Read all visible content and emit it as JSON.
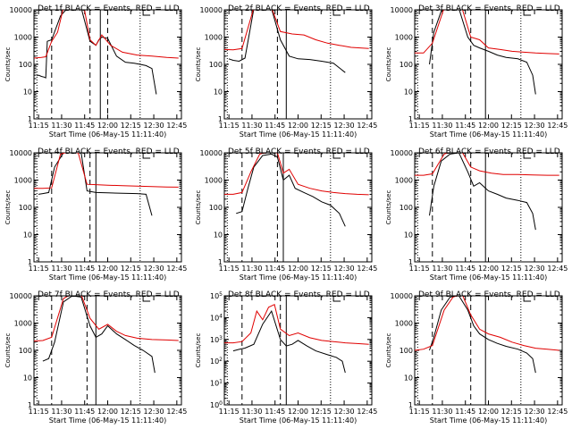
{
  "chart_data": [
    {
      "type": "line",
      "title": "Det 1f BLACK = Events, RED = LLD",
      "xlabel": "Start Time (06-May-15 11:11:40)",
      "ylabel": "Counts/sec",
      "x_ticks": [
        "11:15",
        "11:30",
        "11:45",
        "12:00",
        "12:15",
        "12:30",
        "12:45"
      ],
      "y_ticks": [
        "1",
        "10",
        "100",
        "1000",
        "10000"
      ],
      "yscale": "log",
      "ylim": [
        1,
        10000
      ],
      "series": [
        {
          "name": "Events",
          "color": "#000000",
          "x": [
            0.02,
            0.03,
            0.05,
            0.07,
            0.08,
            0.09,
            0.12,
            0.18,
            0.23,
            0.27,
            0.32,
            0.38,
            0.42,
            0.44,
            0.46,
            0.5,
            0.56,
            0.62,
            0.68,
            0.72,
            0.76,
            0.8,
            0.83
          ],
          "y": [
            38,
            40,
            36,
            34,
            32,
            700,
            800,
            6000,
            12000,
            13000,
            12000,
            700,
            500,
            800,
            1000,
            900,
            200,
            120,
            110,
            100,
            90,
            70,
            8
          ]
        },
        {
          "name": "LLD",
          "color": "#e00000",
          "x": [
            0,
            0.05,
            0.08,
            0.12,
            0.16,
            0.2,
            0.27,
            0.34,
            0.38,
            0.42,
            0.46,
            0.52,
            0.6,
            0.7,
            0.8,
            0.9,
            0.98
          ],
          "y": [
            170,
            180,
            190,
            700,
            1500,
            12000,
            13000,
            12000,
            800,
            500,
            1200,
            500,
            280,
            220,
            200,
            180,
            170
          ]
        }
      ],
      "vlines_dashed": [
        0.12,
        0.38,
        0.5
      ],
      "vlines_dotted": [
        0.02,
        0.72
      ],
      "vlines_solid": [
        0.45
      ]
    },
    {
      "type": "line",
      "title": "Det 2f BLACK = Events, RED = LLD",
      "xlabel": "Start Time (06-May-15 11:11:40)",
      "ylabel": "Counts/sec",
      "x_ticks": [
        "11:15",
        "11:30",
        "11:45",
        "12:00",
        "12:15",
        "12:30",
        "12:45"
      ],
      "y_ticks": [
        "1",
        "10",
        "100",
        "1000",
        "10000"
      ],
      "yscale": "log",
      "ylim": [
        1,
        10000
      ],
      "series": [
        {
          "name": "Events",
          "color": "#000000",
          "x": [
            0.03,
            0.06,
            0.1,
            0.14,
            0.2,
            0.26,
            0.32,
            0.38,
            0.44,
            0.5,
            0.58,
            0.66,
            0.74,
            0.82
          ],
          "y": [
            160,
            140,
            130,
            170,
            11000,
            12000,
            11000,
            800,
            200,
            160,
            150,
            130,
            110,
            50
          ]
        },
        {
          "name": "LLD",
          "color": "#e00000",
          "x": [
            0,
            0.06,
            0.12,
            0.2,
            0.26,
            0.32,
            0.38,
            0.46,
            0.54,
            0.62,
            0.7,
            0.78,
            0.86,
            0.98
          ],
          "y": [
            350,
            340,
            380,
            12000,
            13000,
            12000,
            1600,
            1300,
            1200,
            800,
            600,
            500,
            420,
            380
          ]
        }
      ],
      "vlines_dashed": [
        0.12,
        0.36
      ],
      "vlines_dotted": [
        0.02,
        0.72
      ],
      "vlines_solid": [
        0.42
      ]
    },
    {
      "type": "line",
      "title": "Det 3f BLACK = Events, RED = LLD",
      "xlabel": "Start Time (06-May-15 11:11:40)",
      "ylabel": "Counts/sec",
      "x_ticks": [
        "11:15",
        "11:30",
        "11:45",
        "12:00",
        "12:15",
        "12:30",
        "12:45"
      ],
      "y_ticks": [
        "1",
        "10",
        "100",
        "1000",
        "10000"
      ],
      "yscale": "log",
      "ylim": [
        1,
        10000
      ],
      "series": [
        {
          "name": "Events",
          "color": "#000000",
          "x": [
            0.1,
            0.13,
            0.18,
            0.24,
            0.3,
            0.36,
            0.4,
            0.44,
            0.5,
            0.56,
            0.62,
            0.7,
            0.76,
            0.8,
            0.82
          ],
          "y": [
            100,
            1500,
            9000,
            12000,
            11000,
            1000,
            500,
            400,
            300,
            220,
            180,
            160,
            120,
            40,
            8
          ]
        },
        {
          "name": "LLD",
          "color": "#e00000",
          "x": [
            0,
            0.06,
            0.12,
            0.2,
            0.26,
            0.32,
            0.38,
            0.44,
            0.5,
            0.58,
            0.66,
            0.74,
            0.82,
            0.9,
            0.98
          ],
          "y": [
            260,
            260,
            600,
            12000,
            13000,
            12000,
            1000,
            800,
            400,
            350,
            300,
            280,
            260,
            250,
            240
          ]
        }
      ],
      "vlines_dashed": [
        0.12,
        0.38
      ],
      "vlines_dotted": [
        0.02,
        0.72
      ],
      "vlines_solid": [
        0.48
      ]
    },
    {
      "type": "line",
      "title": "Det 4f BLACK = Events, RED = LLD",
      "xlabel": "Start Time (06-May-15 11:11:40)",
      "ylabel": "Counts/sec",
      "x_ticks": [
        "11:15",
        "11:30",
        "11:45",
        "12:00",
        "12:15",
        "12:30",
        "12:45"
      ],
      "y_ticks": [
        "1",
        "10",
        "100",
        "1000",
        "10000"
      ],
      "yscale": "log",
      "ylim": [
        1,
        10000
      ],
      "series": [
        {
          "name": "Events",
          "color": "#000000",
          "x": [
            0.03,
            0.06,
            0.1,
            0.14,
            0.2,
            0.26,
            0.32,
            0.36,
            0.42,
            0.5,
            0.6,
            0.7,
            0.76,
            0.8
          ],
          "y": [
            300,
            320,
            350,
            3000,
            10000,
            11000,
            10000,
            400,
            350,
            340,
            330,
            320,
            300,
            50
          ]
        },
        {
          "name": "LLD",
          "color": "#e00000",
          "x": [
            0,
            0.06,
            0.12,
            0.18,
            0.24,
            0.3,
            0.36,
            0.42,
            0.5,
            0.6,
            0.7,
            0.8,
            0.9,
            0.98
          ],
          "y": [
            500,
            500,
            520,
            9000,
            11000,
            10000,
            700,
            680,
            650,
            620,
            600,
            580,
            560,
            550
          ]
        }
      ],
      "vlines_dashed": [
        0.12,
        0.38
      ],
      "vlines_dotted": [
        0.02,
        0.72
      ],
      "vlines_solid": [
        0.42
      ]
    },
    {
      "type": "line",
      "title": "Det 5f BLACK = Events, RED = LLD",
      "xlabel": "Start Time (06-May-15 11:11:40)",
      "ylabel": "Counts/sec",
      "x_ticks": [
        "11:15",
        "11:30",
        "11:45",
        "12:00",
        "12:15",
        "12:30",
        "12:45"
      ],
      "y_ticks": [
        "1",
        "10",
        "100",
        "1000",
        "10000"
      ],
      "yscale": "log",
      "ylim": [
        1,
        10000
      ],
      "series": [
        {
          "name": "Events",
          "color": "#000000",
          "x": [
            0.08,
            0.12,
            0.16,
            0.2,
            0.26,
            0.32,
            0.36,
            0.4,
            0.44,
            0.48,
            0.54,
            0.6,
            0.66,
            0.72,
            0.78,
            0.82
          ],
          "y": [
            60,
            70,
            500,
            3000,
            8000,
            9000,
            7000,
            1000,
            1500,
            500,
            350,
            250,
            160,
            120,
            60,
            20
          ]
        },
        {
          "name": "LLD",
          "color": "#e00000",
          "x": [
            0,
            0.06,
            0.12,
            0.18,
            0.24,
            0.3,
            0.36,
            0.4,
            0.44,
            0.5,
            0.58,
            0.66,
            0.74,
            0.82,
            0.9,
            0.98
          ],
          "y": [
            300,
            300,
            350,
            2000,
            9000,
            11000,
            10000,
            1800,
            2500,
            700,
            500,
            400,
            350,
            320,
            300,
            290
          ]
        }
      ],
      "vlines_dashed": [
        0.12,
        0.36
      ],
      "vlines_dotted": [
        0.02,
        0.72
      ],
      "vlines_solid": [
        0.4
      ]
    },
    {
      "type": "line",
      "title": "Det 6f BLACK = Events, RED = LLD",
      "xlabel": "Start Time (06-May-15 11:11:40)",
      "ylabel": "Counts/sec",
      "x_ticks": [
        "11:15",
        "11:30",
        "11:45",
        "12:00",
        "12:15",
        "12:30",
        "12:45"
      ],
      "y_ticks": [
        "1",
        "10",
        "100",
        "1000",
        "10000"
      ],
      "yscale": "log",
      "ylim": [
        1,
        10000
      ],
      "series": [
        {
          "name": "Events",
          "color": "#000000",
          "x": [
            0.1,
            0.13,
            0.18,
            0.24,
            0.3,
            0.36,
            0.4,
            0.44,
            0.5,
            0.56,
            0.62,
            0.7,
            0.76,
            0.8,
            0.82
          ],
          "y": [
            50,
            600,
            5000,
            9000,
            10000,
            2000,
            600,
            800,
            400,
            300,
            220,
            180,
            150,
            60,
            15
          ]
        },
        {
          "name": "LLD",
          "color": "#e00000",
          "x": [
            0,
            0.06,
            0.12,
            0.2,
            0.26,
            0.32,
            0.38,
            0.44,
            0.52,
            0.6,
            0.7,
            0.8,
            0.9,
            0.98
          ],
          "y": [
            1500,
            1500,
            1700,
            9000,
            12000,
            11000,
            3000,
            2200,
            1800,
            1600,
            1600,
            1550,
            1500,
            1500
          ]
        }
      ],
      "vlines_dashed": [
        0.12,
        0.38
      ],
      "vlines_dotted": [
        0.02,
        0.72
      ],
      "vlines_solid": [
        0.48
      ]
    },
    {
      "type": "line",
      "title": "Det 7f BLACK = Events, RED = LLD",
      "xlabel": "Start Time (06-May-15 11:11:40)",
      "ylabel": "Counts/sec",
      "x_ticks": [
        "11:15",
        "11:30",
        "11:45",
        "12:00",
        "12:15",
        "12:30",
        "12:45"
      ],
      "y_ticks": [
        "1",
        "10",
        "100",
        "1000",
        "10000"
      ],
      "yscale": "log",
      "ylim": [
        1,
        10000
      ],
      "series": [
        {
          "name": "Events",
          "color": "#000000",
          "x": [
            0.06,
            0.1,
            0.14,
            0.2,
            0.26,
            0.32,
            0.38,
            0.42,
            0.46,
            0.5,
            0.56,
            0.62,
            0.68,
            0.74,
            0.8,
            0.82
          ],
          "y": [
            40,
            50,
            200,
            6000,
            10000,
            9000,
            800,
            300,
            400,
            800,
            400,
            250,
            150,
            100,
            60,
            15
          ]
        },
        {
          "name": "LLD",
          "color": "#e00000",
          "x": [
            0,
            0.06,
            0.12,
            0.2,
            0.26,
            0.32,
            0.38,
            0.44,
            0.5,
            0.56,
            0.62,
            0.7,
            0.8,
            0.9,
            0.98
          ],
          "y": [
            220,
            230,
            300,
            8000,
            12000,
            11000,
            1500,
            600,
            900,
            500,
            350,
            280,
            250,
            240,
            230
          ]
        }
      ],
      "vlines_dashed": [
        0.12,
        0.36
      ],
      "vlines_dotted": [
        0.02,
        0.72
      ],
      "vlines_solid": [
        0.42
      ]
    },
    {
      "type": "line",
      "title": "Det 8f BLACK = Events, RED = LLD",
      "xlabel": "Start Time (06-May-15 11:11:40)",
      "ylabel": "Counts/sec",
      "x_ticks": [
        "11:15",
        "11:30",
        "11:45",
        "12:00",
        "12:15",
        "12:30",
        "12:45"
      ],
      "y_ticks": [
        "10^0",
        "10^1",
        "10^2",
        "10^3",
        "10^4",
        "10^5"
      ],
      "yscale": "log",
      "ylim": [
        1,
        100000
      ],
      "series": [
        {
          "name": "Events",
          "color": "#000000",
          "x": [
            0.06,
            0.1,
            0.14,
            0.2,
            0.26,
            0.32,
            0.38,
            0.42,
            0.46,
            0.5,
            0.56,
            0.62,
            0.7,
            0.76,
            0.8,
            0.82
          ],
          "y": [
            300,
            350,
            400,
            600,
            5000,
            20000,
            1000,
            500,
            600,
            900,
            500,
            300,
            200,
            150,
            100,
            30
          ]
        },
        {
          "name": "LLD",
          "color": "#e00000",
          "x": [
            0,
            0.06,
            0.12,
            0.18,
            0.22,
            0.26,
            0.3,
            0.34,
            0.38,
            0.44,
            0.5,
            0.58,
            0.66,
            0.74,
            0.82,
            0.9,
            0.98
          ],
          "y": [
            700,
            700,
            800,
            2000,
            20000,
            8000,
            30000,
            40000,
            3000,
            1500,
            2000,
            1200,
            900,
            800,
            700,
            650,
            600
          ]
        }
      ],
      "vlines_dashed": [
        0.12,
        0.38
      ],
      "vlines_dotted": [
        0.02,
        0.72
      ],
      "vlines_solid": [
        0.42
      ]
    },
    {
      "type": "line",
      "title": "Det 9f BLACK = Events, RED = LLD",
      "xlabel": "Start Time (06-May-15 11:11:40)",
      "ylabel": "Counts/sec",
      "x_ticks": [
        "11:15",
        "11:30",
        "11:45",
        "12:00",
        "12:15",
        "12:30",
        "12:45"
      ],
      "y_ticks": [
        "1",
        "10",
        "100",
        "1000",
        "10000"
      ],
      "yscale": "log",
      "ylim": [
        1,
        10000
      ],
      "series": [
        {
          "name": "Events",
          "color": "#000000",
          "x": [
            0.1,
            0.13,
            0.18,
            0.24,
            0.3,
            0.36,
            0.4,
            0.44,
            0.5,
            0.56,
            0.62,
            0.7,
            0.76,
            0.8,
            0.82
          ],
          "y": [
            100,
            300,
            3000,
            9000,
            10000,
            3000,
            800,
            400,
            250,
            180,
            140,
            110,
            80,
            50,
            15
          ]
        },
        {
          "name": "LLD",
          "color": "#e00000",
          "x": [
            0,
            0.06,
            0.12,
            0.2,
            0.26,
            0.32,
            0.38,
            0.44,
            0.5,
            0.58,
            0.66,
            0.74,
            0.82,
            0.9,
            0.98
          ],
          "y": [
            100,
            110,
            150,
            3000,
            9000,
            12000,
            2000,
            600,
            400,
            300,
            200,
            150,
            120,
            110,
            100
          ]
        }
      ],
      "vlines_dashed": [
        0.12,
        0.38
      ],
      "vlines_dotted": [
        0.02,
        0.72
      ],
      "vlines_solid": [
        0.48
      ]
    }
  ]
}
